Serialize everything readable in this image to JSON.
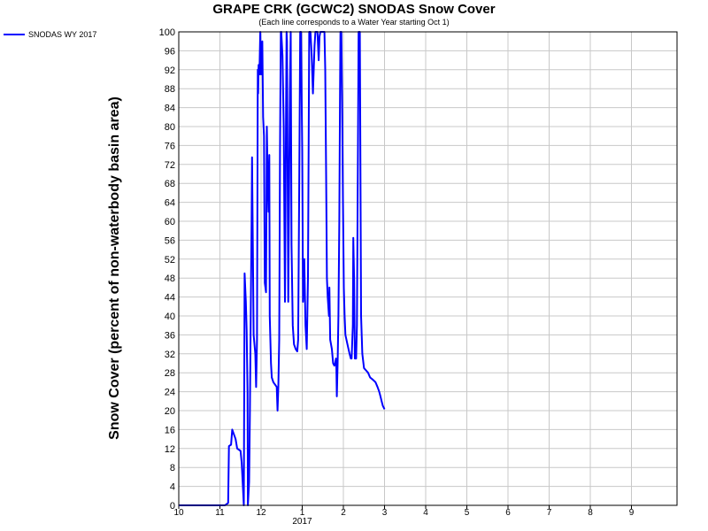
{
  "chart_data": {
    "type": "line",
    "title": "GRAPE CRK (GCWC2) SNODAS Snow Cover",
    "subtitle": "(Each line corresponds to a Water Year starting Oct 1)",
    "ylabel": "Snow Cover (percent of non-waterbody basin area)",
    "xlabel": "",
    "ylim": [
      0,
      100
    ],
    "yticks": [
      0,
      4,
      8,
      12,
      16,
      20,
      24,
      28,
      32,
      36,
      40,
      44,
      48,
      52,
      56,
      60,
      64,
      68,
      72,
      76,
      80,
      84,
      88,
      92,
      96,
      100
    ],
    "x_unit": "months since Oct 1, 2016",
    "xlim": [
      0,
      11.8
    ],
    "xticks": [
      {
        "value": 0,
        "label": "10"
      },
      {
        "value": 1,
        "label": "11"
      },
      {
        "value": 2,
        "label": "12"
      },
      {
        "value": 3,
        "label": "1"
      },
      {
        "value": 4,
        "label": "2"
      },
      {
        "value": 5,
        "label": "3"
      },
      {
        "value": 6,
        "label": "4"
      },
      {
        "value": 7,
        "label": "5"
      },
      {
        "value": 8,
        "label": "6"
      },
      {
        "value": 9,
        "label": "7"
      },
      {
        "value": 10,
        "label": "8"
      },
      {
        "value": 11,
        "label": "9"
      }
    ],
    "year_label": {
      "value": 3,
      "label": "2017"
    },
    "grid": true,
    "legend": "top-left outside",
    "series": [
      {
        "name": "SNODAS WY 2017",
        "color": "#0000ff",
        "points": [
          [
            0.0,
            0
          ],
          [
            1.12,
            0
          ],
          [
            1.2,
            0.5
          ],
          [
            1.22,
            12.5
          ],
          [
            1.27,
            12.8
          ],
          [
            1.3,
            16
          ],
          [
            1.38,
            14
          ],
          [
            1.42,
            12
          ],
          [
            1.5,
            11.5
          ],
          [
            1.53,
            9
          ],
          [
            1.58,
            0
          ],
          [
            1.6,
            49
          ],
          [
            1.63,
            43
          ],
          [
            1.65,
            37
          ],
          [
            1.67,
            24
          ],
          [
            1.68,
            0
          ],
          [
            1.71,
            5
          ],
          [
            1.73,
            20
          ],
          [
            1.75,
            42
          ],
          [
            1.77,
            60
          ],
          [
            1.78,
            73.5
          ],
          [
            1.8,
            55
          ],
          [
            1.82,
            36
          ],
          [
            1.86,
            32
          ],
          [
            1.88,
            25
          ],
          [
            1.9,
            35
          ],
          [
            1.92,
            92
          ],
          [
            1.93,
            87
          ],
          [
            1.94,
            93
          ],
          [
            1.96,
            91
          ],
          [
            1.98,
            100
          ],
          [
            2.0,
            91
          ],
          [
            2.03,
            98
          ],
          [
            2.05,
            82
          ],
          [
            2.07,
            78
          ],
          [
            2.09,
            47
          ],
          [
            2.12,
            45
          ],
          [
            2.14,
            80
          ],
          [
            2.16,
            70
          ],
          [
            2.18,
            62
          ],
          [
            2.2,
            74
          ],
          [
            2.21,
            40
          ],
          [
            2.24,
            30
          ],
          [
            2.26,
            27
          ],
          [
            2.3,
            26
          ],
          [
            2.34,
            25.5
          ],
          [
            2.38,
            25
          ],
          [
            2.4,
            20
          ],
          [
            2.42,
            25
          ],
          [
            2.44,
            35
          ],
          [
            2.46,
            75
          ],
          [
            2.48,
            100
          ],
          [
            2.49,
            100
          ],
          [
            2.52,
            95
          ],
          [
            2.55,
            80
          ],
          [
            2.58,
            43
          ],
          [
            2.6,
            73
          ],
          [
            2.62,
            100
          ],
          [
            2.63,
            98
          ],
          [
            2.66,
            43
          ],
          [
            2.68,
            65
          ],
          [
            2.7,
            88
          ],
          [
            2.72,
            100
          ],
          [
            2.74,
            55
          ],
          [
            2.77,
            38
          ],
          [
            2.8,
            34
          ],
          [
            2.84,
            33
          ],
          [
            2.88,
            32.5
          ],
          [
            2.9,
            35
          ],
          [
            2.93,
            70
          ],
          [
            2.95,
            100
          ],
          [
            2.97,
            100
          ],
          [
            3.0,
            75
          ],
          [
            3.02,
            43
          ],
          [
            3.05,
            52
          ],
          [
            3.08,
            38
          ],
          [
            3.11,
            33
          ],
          [
            3.14,
            48
          ],
          [
            3.17,
            100
          ],
          [
            3.2,
            100
          ],
          [
            3.23,
            95
          ],
          [
            3.26,
            87
          ],
          [
            3.3,
            97
          ],
          [
            3.32,
            100
          ],
          [
            3.37,
            100
          ],
          [
            3.4,
            94
          ],
          [
            3.42,
            99
          ],
          [
            3.44,
            100
          ],
          [
            3.48,
            100
          ],
          [
            3.5,
            100
          ],
          [
            3.54,
            100
          ],
          [
            3.56,
            92
          ],
          [
            3.58,
            70
          ],
          [
            3.6,
            48
          ],
          [
            3.62,
            44
          ],
          [
            3.65,
            40
          ],
          [
            3.66,
            46
          ],
          [
            3.68,
            35
          ],
          [
            3.72,
            33
          ],
          [
            3.75,
            30
          ],
          [
            3.78,
            29.5
          ],
          [
            3.8,
            30
          ],
          [
            3.82,
            31
          ],
          [
            3.83,
            29
          ],
          [
            3.84,
            23
          ],
          [
            3.86,
            30
          ],
          [
            3.88,
            40
          ],
          [
            3.9,
            60
          ],
          [
            3.92,
            90
          ],
          [
            3.93,
            100
          ],
          [
            3.95,
            100
          ],
          [
            3.97,
            85
          ],
          [
            3.99,
            65
          ],
          [
            4.01,
            46
          ],
          [
            4.03,
            40
          ],
          [
            4.05,
            36
          ],
          [
            4.1,
            34
          ],
          [
            4.15,
            32
          ],
          [
            4.18,
            31
          ],
          [
            4.2,
            31
          ],
          [
            4.23,
            38
          ],
          [
            4.24,
            56.5
          ],
          [
            4.26,
            48
          ],
          [
            4.28,
            31
          ],
          [
            4.31,
            31
          ],
          [
            4.33,
            38
          ],
          [
            4.35,
            70
          ],
          [
            4.37,
            100
          ],
          [
            4.4,
            100
          ],
          [
            4.43,
            40
          ],
          [
            4.46,
            32
          ],
          [
            4.5,
            29
          ],
          [
            4.55,
            28.5
          ],
          [
            4.6,
            28
          ],
          [
            4.65,
            27
          ],
          [
            4.72,
            26.5
          ],
          [
            4.78,
            26
          ],
          [
            4.83,
            25
          ],
          [
            4.87,
            24
          ],
          [
            4.9,
            23
          ],
          [
            4.93,
            22
          ],
          [
            4.96,
            21
          ],
          [
            5.0,
            20.3
          ]
        ]
      }
    ]
  }
}
